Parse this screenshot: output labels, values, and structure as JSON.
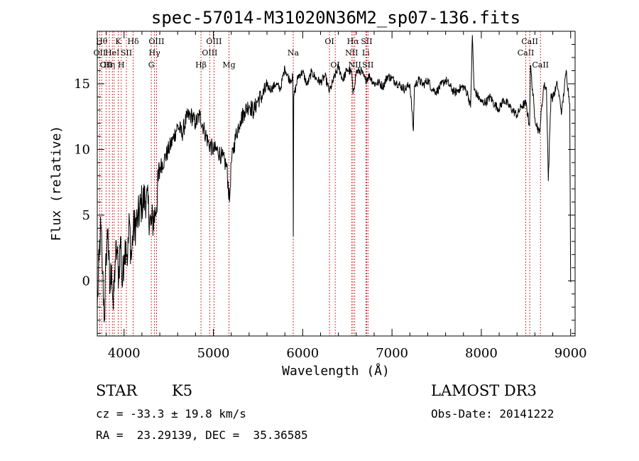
{
  "chart_data": {
    "type": "line",
    "title": "spec-57014-M31020N36M2_sp07-136.fits",
    "xlabel": "Wavelength (Å)",
    "ylabel": "Flux (relative)",
    "xlim": [
      3700,
      9050
    ],
    "ylim": [
      -4.2,
      19.0
    ],
    "x_ticks": [
      4000,
      5000,
      6000,
      7000,
      8000,
      9000
    ],
    "y_ticks": [
      0,
      5,
      10,
      15
    ],
    "x_tick_labels": [
      "4000",
      "5000",
      "6000",
      "7000",
      "8000",
      "9000"
    ],
    "y_tick_labels": [
      "0",
      "5",
      "10",
      "15"
    ],
    "grid": false,
    "series": [
      {
        "x": [
          3700,
          3720,
          3740,
          3760,
          3780,
          3800,
          3820,
          3840,
          3860,
          3880,
          3900,
          3920,
          3940,
          3960,
          3980,
          4000,
          4020,
          4040,
          4060,
          4080,
          4100,
          4150,
          4200,
          4250,
          4300,
          4350,
          4400,
          4450,
          4500,
          4550,
          4600,
          4650,
          4700,
          4750,
          4800,
          4850,
          4900,
          4950,
          5000,
          5050,
          5100,
          5150,
          5180,
          5200,
          5250,
          5300,
          5350,
          5400,
          5450,
          5500,
          5550,
          5600,
          5650,
          5700,
          5750,
          5800,
          5850,
          5890,
          5895,
          5900,
          5950,
          6000,
          6050,
          6100,
          6150,
          6200,
          6250,
          6300,
          6350,
          6400,
          6450,
          6500,
          6550,
          6563,
          6600,
          6650,
          6700,
          6750,
          6800,
          6850,
          6900,
          6950,
          7000,
          7050,
          7100,
          7150,
          7200,
          7240,
          7250,
          7300,
          7350,
          7400,
          7450,
          7500,
          7550,
          7600,
          7650,
          7700,
          7750,
          7800,
          7850,
          7880,
          7900,
          7920,
          7950,
          8000,
          8050,
          8100,
          8150,
          8200,
          8250,
          8300,
          8350,
          8400,
          8450,
          8500,
          8540,
          8550,
          8600,
          8650,
          8700,
          8730,
          8750,
          8780,
          8800,
          8850,
          8900,
          8950,
          8990,
          9000
        ],
        "values": [
          -2.0,
          1.5,
          4.2,
          0.5,
          -3.0,
          2.0,
          4.0,
          -1.0,
          1.2,
          -2.2,
          1.5,
          2.4,
          0.2,
          3.4,
          -0.5,
          2.0,
          3.0,
          1.8,
          4.6,
          1.6,
          3.8,
          4.6,
          6.0,
          6.4,
          4.2,
          5.1,
          8.6,
          9.2,
          10.0,
          10.8,
          11.8,
          11.2,
          12.4,
          12.6,
          12.0,
          12.6,
          11.4,
          10.4,
          10.0,
          9.9,
          9.4,
          8.7,
          6.0,
          9.0,
          11.0,
          12.2,
          12.9,
          13.4,
          12.9,
          13.8,
          14.1,
          14.8,
          14.6,
          15.0,
          14.6,
          16.2,
          15.3,
          15.5,
          3.4,
          14.0,
          15.6,
          15.9,
          14.9,
          15.9,
          15.4,
          15.1,
          15.6,
          14.4,
          15.4,
          16.3,
          15.3,
          16.1,
          15.8,
          14.2,
          15.9,
          16.0,
          15.3,
          15.6,
          15.0,
          15.1,
          14.8,
          15.6,
          15.4,
          15.1,
          14.8,
          14.6,
          15.0,
          11.4,
          14.8,
          15.3,
          14.9,
          15.3,
          14.6,
          14.4,
          14.9,
          15.3,
          14.8,
          14.3,
          14.6,
          14.8,
          14.2,
          13.2,
          18.7,
          14.5,
          14.2,
          13.6,
          13.6,
          14.0,
          13.4,
          13.1,
          13.8,
          13.4,
          13.0,
          12.6,
          13.3,
          13.5,
          11.8,
          16.4,
          12.4,
          11.2,
          14.9,
          14.6,
          7.6,
          14.2,
          13.9,
          15.0,
          12.8,
          16.0,
          13.5,
          -0.1
        ]
      }
    ],
    "lines": [
      {
        "w": 3727,
        "label": "OII",
        "row": 2
      },
      {
        "w": 3750,
        "label": "Hθ",
        "row": 1
      },
      {
        "w": 3798,
        "label": "OII",
        "row": 3
      },
      {
        "w": 3835,
        "label": "Hη",
        "row": 3
      },
      {
        "w": 3869,
        "label": "HeI",
        "row": 2
      },
      {
        "w": 3889,
        "label": "",
        "row": 0
      },
      {
        "w": 3934,
        "label": "K",
        "row": 1
      },
      {
        "w": 3969,
        "label": "H",
        "row": 3
      },
      {
        "w": 4026,
        "label": "SII",
        "row": 2
      },
      {
        "w": 4102,
        "label": "Hδ",
        "row": 1
      },
      {
        "w": 4305,
        "label": "G",
        "row": 3
      },
      {
        "w": 4341,
        "label": "Hγ",
        "row": 2
      },
      {
        "w": 4363,
        "label": "OIII",
        "row": 1
      },
      {
        "w": 4861,
        "label": "Hβ",
        "row": 3
      },
      {
        "w": 4959,
        "label": "OIII",
        "row": 2
      },
      {
        "w": 5007,
        "label": "OIII",
        "row": 1
      },
      {
        "w": 5175,
        "label": "Mg",
        "row": 3
      },
      {
        "w": 5894,
        "label": "Na",
        "row": 2
      },
      {
        "w": 6300,
        "label": "OI",
        "row": 1
      },
      {
        "w": 6364,
        "label": "OI",
        "row": 3
      },
      {
        "w": 6548,
        "label": "NII",
        "row": 2
      },
      {
        "w": 6563,
        "label": "Hα",
        "row": 1
      },
      {
        "w": 6583,
        "label": "NII",
        "row": 3
      },
      {
        "w": 6707,
        "label": "Li",
        "row": 2
      },
      {
        "w": 6716,
        "label": "SII",
        "row": 1
      },
      {
        "w": 6731,
        "label": "SII",
        "row": 3
      },
      {
        "w": 8498,
        "label": "CaII",
        "row": 2
      },
      {
        "w": 8542,
        "label": "CaII",
        "row": 1
      },
      {
        "w": 8662,
        "label": "CaII",
        "row": 3
      }
    ],
    "line_color": "#cc0000",
    "spectrum_color": "#000000"
  },
  "info": {
    "class": "STAR",
    "subclass": "K5",
    "survey": "LAMOST DR3",
    "cz": "cz = -33.3 ± 19.8 km/s",
    "obs_date": "Obs-Date: 20141222",
    "coords": "RA =  23.29139, DEC =  35.36585"
  }
}
